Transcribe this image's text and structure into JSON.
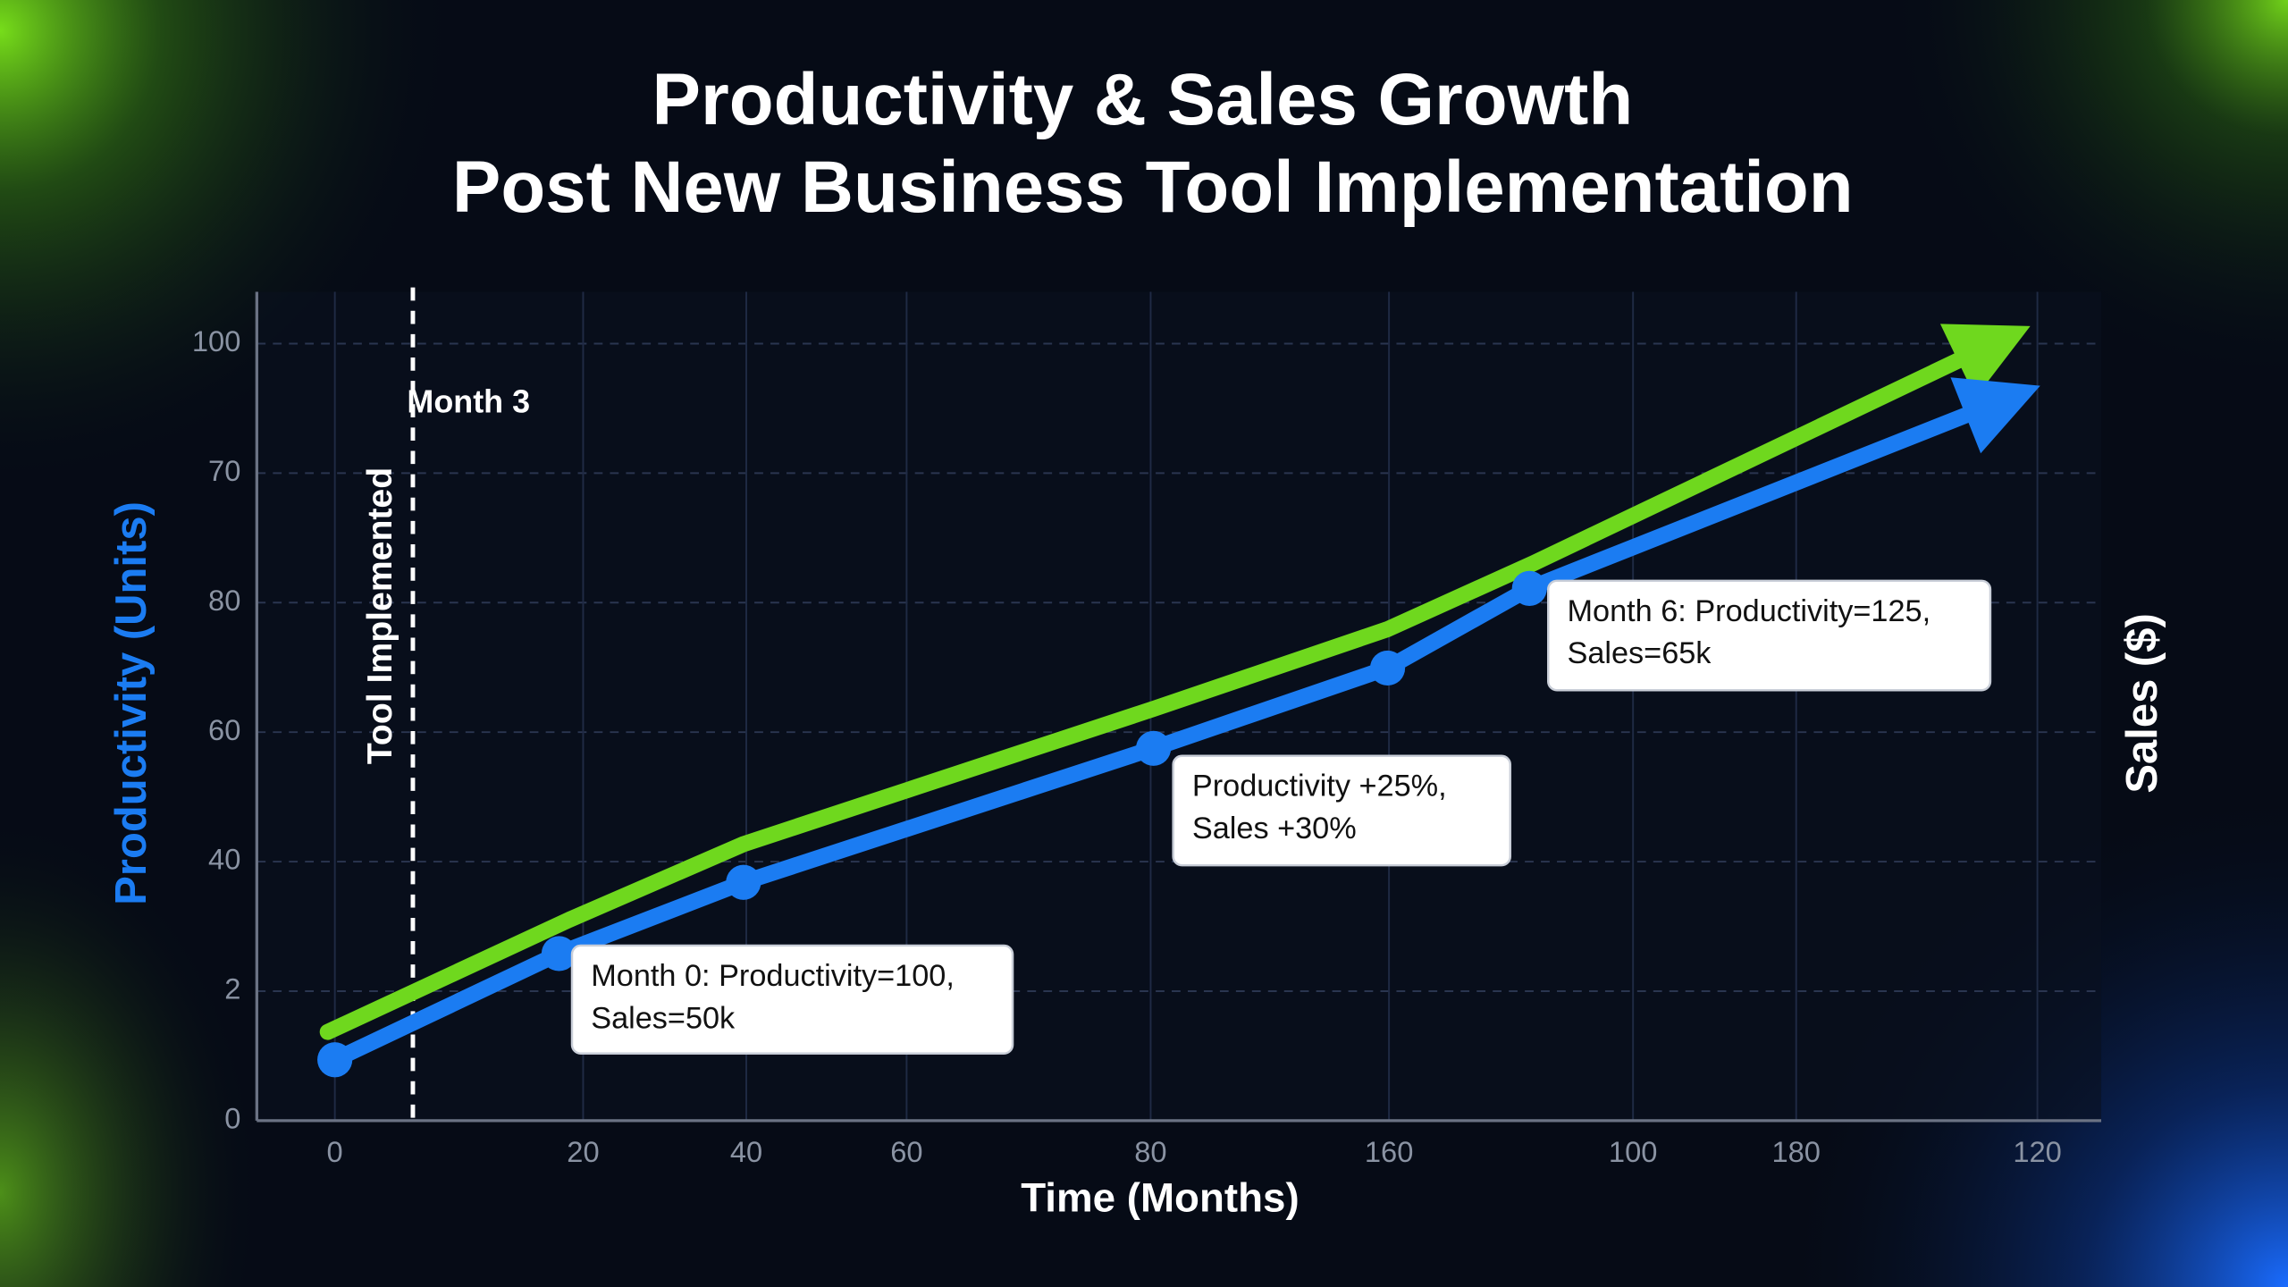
{
  "chart_data": {
    "type": "line",
    "title": [
      "Productivity & Sales Growth",
      "Post New Business Tool Implementation"
    ],
    "x_label": "Time (Months)",
    "y_label": "Productivity (Units)",
    "y2_label": "Sales ($)",
    "xlim": [
      -5.5,
      124.5
    ],
    "xticks": [
      0,
      {
        "value": 17.5,
        "label": "20"
      },
      {
        "value": 29,
        "label": "40"
      },
      {
        "value": 40.3,
        "label": "60"
      },
      {
        "value": 57.5,
        "label": "80"
      },
      {
        "value": 74.3,
        "label": "160"
      },
      {
        "value": 91.5,
        "label": "100"
      },
      {
        "value": 103,
        "label": "180"
      },
      120
    ],
    "ylim": [
      0,
      128
    ],
    "yticks": [
      0,
      {
        "value": 20,
        "label": "2"
      },
      40,
      60,
      80,
      {
        "value": 100,
        "label": "70"
      },
      {
        "value": 120,
        "label": "100"
      }
    ],
    "grid": true,
    "series": [
      {
        "name": "Sales",
        "color": "#6fd81e",
        "x": [
          -0.5,
          16.5,
          28.8,
          57.7,
          74.2,
          84.5,
          119.5
        ],
        "values": [
          13.7,
          31.0,
          42.7,
          63.6,
          75.9,
          86.1,
          122.7
        ],
        "markers": false
      },
      {
        "name": "Productivity",
        "color": "#1b7cf2",
        "x": [
          0,
          15.8,
          28.8,
          57.7,
          74.2,
          84.2,
          120.2
        ],
        "values": [
          9.4,
          25.8,
          36.8,
          57.5,
          69.9,
          82.2,
          113.5
        ],
        "markers": true
      }
    ],
    "vline": {
      "x": 5.5,
      "label": "Month 3",
      "text": "Tool Implemented"
    },
    "annotations": [
      [
        "Month 0: Productivity=100,",
        "Sales=50k"
      ],
      [
        "Productivity +25%,",
        "Sales +30%"
      ],
      [
        "Month 6: Productivity=125,",
        "Sales=65k"
      ]
    ]
  }
}
